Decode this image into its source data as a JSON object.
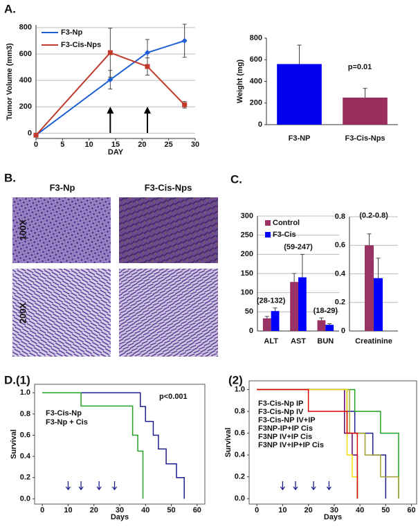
{
  "panel_labels": [
    "A.",
    "B.",
    "C.",
    "D.(1)",
    "(2)"
  ],
  "histology": {
    "columns": [
      "F3-Np",
      "F3-Cis-Nps"
    ],
    "rows": [
      "100X",
      "200X"
    ]
  },
  "chart_data": [
    {
      "type": "line",
      "xlabel": "DAY",
      "ylabel": "Tumor Volume (mm3)",
      "x": [
        0,
        14,
        21,
        28
      ],
      "series": [
        {
          "name": "F3-Np",
          "color": "#1f5fd6",
          "values": [
            -15,
            405,
            610,
            700
          ],
          "errors": [
            0,
            70,
            100,
            125
          ]
        },
        {
          "name": "F3-Cis-Nps",
          "color": "#c0392b",
          "values": [
            -15,
            610,
            505,
            215
          ],
          "errors": [
            0,
            185,
            65,
            25
          ]
        }
      ],
      "xlim": [
        0,
        30
      ],
      "xticks": [
        0,
        5,
        10,
        15,
        20,
        25,
        30
      ],
      "ylim": [
        -40,
        820
      ],
      "yticks": [
        0,
        200,
        400,
        600,
        800
      ],
      "grid": true,
      "arrows": [
        14,
        21
      ]
    },
    {
      "type": "bar",
      "ylabel": "Weight (mg)",
      "categories": [
        "F3-NP",
        "F3-Cis-Nps"
      ],
      "values": [
        560,
        250
      ],
      "errors": [
        175,
        85
      ],
      "colors": [
        "#0000ee",
        "#9b2d5e"
      ],
      "ylim": [
        0,
        800
      ],
      "yticks": [
        0,
        200,
        400,
        600,
        800
      ],
      "annotation": "p=0.01"
    },
    {
      "type": "bar",
      "categories": [
        "ALT",
        "AST",
        "BUN"
      ],
      "series": [
        {
          "name": "Control",
          "color": "#993366",
          "values": [
            33,
            128,
            28
          ],
          "errors": [
            5,
            22,
            6
          ]
        },
        {
          "name": "F3-Cis",
          "color": "#0000ff",
          "values": [
            52,
            140,
            16
          ],
          "errors": [
            8,
            60,
            3
          ]
        }
      ],
      "ylim": [
        0,
        300
      ],
      "yticks": [
        0,
        50,
        100,
        150,
        200,
        250,
        300
      ],
      "grid": true,
      "annotations": [
        "(28-132)",
        "(59-247)",
        "(18-29)"
      ]
    },
    {
      "type": "bar",
      "categories": [
        "Creatinine"
      ],
      "series": [
        {
          "name": "Control",
          "color": "#993366",
          "values": [
            0.6
          ],
          "errors": [
            0.08
          ]
        },
        {
          "name": "F3-Cis",
          "color": "#0000ff",
          "values": [
            0.37
          ],
          "errors": [
            0.14
          ]
        }
      ],
      "ylim": [
        0,
        0.8
      ],
      "yticks": [
        0,
        0.2,
        0.4,
        0.6,
        0.8
      ],
      "grid": true,
      "annotations": [
        "(0.2-0.8)"
      ]
    },
    {
      "type": "step",
      "xlabel": "Days",
      "ylabel": "Survival",
      "annotation": "p<0.001",
      "series": [
        {
          "name": "F3-Cis-Np",
          "color": "#1c1c8c",
          "x": [
            0,
            38,
            40,
            43,
            45,
            48,
            52,
            55
          ],
          "values": [
            1,
            0.87,
            0.73,
            0.6,
            0.47,
            0.33,
            0.2,
            0
          ]
        },
        {
          "name": "F3-Np + Cis",
          "color": "#22a022",
          "x": [
            0,
            15,
            35,
            37,
            39
          ],
          "values": [
            1,
            0.875,
            0.6,
            0.45,
            0
          ]
        }
      ],
      "xlim": [
        -3,
        63
      ],
      "xticks": [
        0,
        10,
        20,
        30,
        40,
        50,
        60
      ],
      "ylim": [
        -0.05,
        1.08
      ],
      "yticks": [
        {
          "value": 0,
          "label": "0.0"
        },
        {
          "value": 0.2,
          "label": "0.2"
        },
        {
          "value": 0.4,
          "label": "0.4"
        },
        {
          "value": 0.6,
          "label": "0.6"
        },
        {
          "value": 0.8,
          "label": "0.8"
        },
        {
          "value": 1,
          "label": "1.0"
        }
      ],
      "arrows": [
        10,
        15,
        22,
        28
      ]
    },
    {
      "type": "step",
      "xlabel": "Days",
      "ylabel": "Survival",
      "series": [
        {
          "name": "F3-Cis-Np IP",
          "color": "#1c1c8c",
          "x": [
            0,
            35,
            38,
            45,
            50
          ],
          "values": [
            1,
            0.8,
            0.6,
            0.4,
            0
          ]
        },
        {
          "name": "F3-Cis-Np IV",
          "color": "#22a022",
          "x": [
            0,
            38,
            48,
            55
          ],
          "values": [
            1,
            0.8,
            0.6,
            0
          ]
        },
        {
          "name": "F3-Cis-NP IV+IP",
          "color": "#a0a030",
          "x": [
            0,
            36,
            42,
            48,
            55
          ],
          "values": [
            1,
            0.6,
            0.4,
            0.2,
            0
          ]
        },
        {
          "name": "F3NP-IP+IP Cis",
          "color": "#660066",
          "x": [
            0,
            34,
            37,
            39
          ],
          "values": [
            1,
            0.6,
            0.4,
            0
          ]
        },
        {
          "name": "F3NP IV+IP Cis",
          "color": "#f0e000",
          "x": [
            0,
            35,
            37,
            39
          ],
          "values": [
            1,
            0.4,
            0.2,
            0
          ]
        },
        {
          "name": "F3NP IV+IP+IP Cis",
          "color": "#e00000",
          "x": [
            0,
            20,
            35,
            39
          ],
          "values": [
            1,
            0.8,
            0.6,
            0
          ]
        }
      ],
      "xlim": [
        -3,
        62
      ],
      "xticks": [
        0,
        10,
        20,
        30,
        40,
        50,
        60
      ],
      "ylim": [
        -0.05,
        1.08
      ],
      "yticks": [
        {
          "value": 0,
          "label": "0.0"
        },
        {
          "value": 0.2,
          "label": "0.2"
        },
        {
          "value": 0.4,
          "label": "0.4"
        },
        {
          "value": 0.6,
          "label": "0.6"
        },
        {
          "value": 0.8,
          "label": "0.8"
        },
        {
          "value": 1,
          "label": "1.0"
        }
      ],
      "arrows": [
        10,
        15,
        22,
        28
      ]
    }
  ]
}
